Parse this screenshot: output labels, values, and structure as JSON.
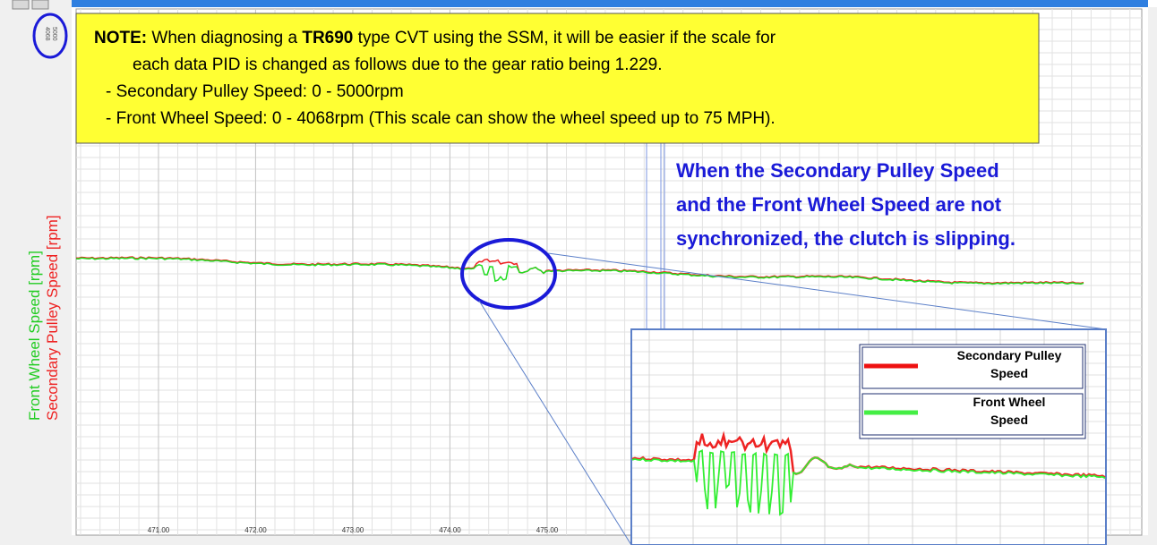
{
  "scale_labels": [
    "4068",
    "5000"
  ],
  "axis": {
    "y_labels": [
      "Front Wheel Speed [rpm]",
      "Secondary Pulley Speed [rpm]"
    ],
    "x_ticks": [
      "471.00",
      "472.00",
      "473.00",
      "474.00",
      "475.00"
    ]
  },
  "note": {
    "lead": "NOTE:",
    "line1a": " When diagnosing a ",
    "model": "TR690",
    "line1b": " type CVT using the SSM, it will be easier if the scale for",
    "line2": "each data PID is changed as follows due to the gear ratio being 1.229.",
    "line3": "- Secondary Pulley Speed: 0 - 5000rpm",
    "line4": "- Front Wheel Speed: 0 - 4068rpm  (This scale can show the wheel speed up to 75 MPH)."
  },
  "annotation": [
    "When the Secondary Pulley Speed",
    "and the Front Wheel Speed are not",
    "synchronized, the clutch is slipping."
  ],
  "legend": [
    {
      "lines": [
        "Secondary Pulley",
        "Speed"
      ]
    },
    {
      "lines": [
        "Front Wheel",
        "Speed"
      ]
    }
  ]
}
